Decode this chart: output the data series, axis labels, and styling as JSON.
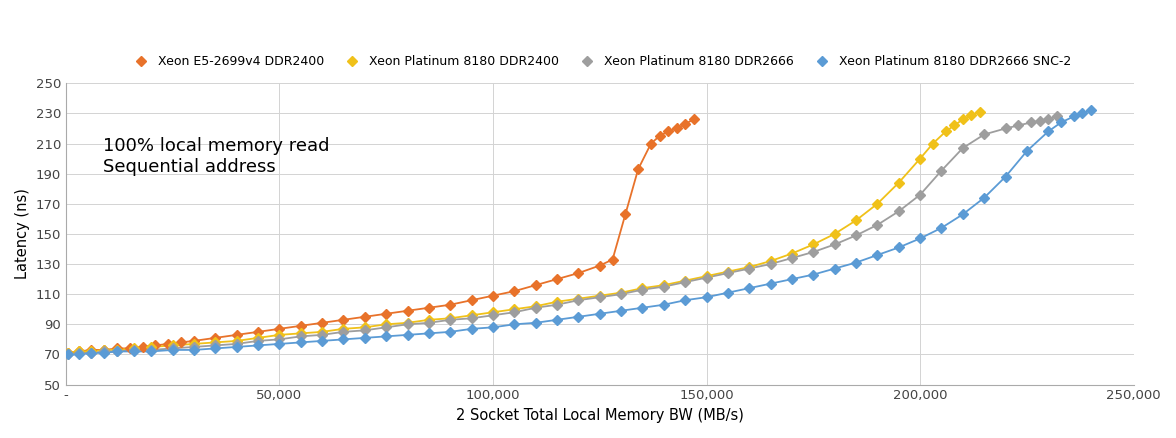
{
  "title": "",
  "xlabel": "2 Socket Total Local Memory BW (MB/s)",
  "ylabel": "Latency (ns)",
  "annotation": "100% local memory read\nSequential address",
  "ylim": [
    50,
    250
  ],
  "xlim": [
    0,
    250000
  ],
  "yticks": [
    50,
    70,
    90,
    110,
    130,
    150,
    170,
    190,
    210,
    230,
    250
  ],
  "xticks": [
    0,
    50000,
    100000,
    150000,
    200000,
    250000
  ],
  "xtick_labels": [
    "-",
    "50,000",
    "100,000",
    "150,000",
    "200,000",
    "250,000"
  ],
  "series": [
    {
      "label": "Xeon E5-2699v4 DDR2400",
      "color": "#E8722A",
      "x": [
        500,
        3000,
        6000,
        9000,
        12000,
        15000,
        18000,
        21000,
        24000,
        27000,
        30000,
        35000,
        40000,
        45000,
        50000,
        55000,
        60000,
        65000,
        70000,
        75000,
        80000,
        85000,
        90000,
        95000,
        100000,
        105000,
        110000,
        115000,
        120000,
        125000,
        128000,
        131000,
        134000,
        137000,
        139000,
        141000,
        143000,
        145000,
        147000
      ],
      "y": [
        71,
        72,
        73,
        73,
        74,
        74,
        75,
        76,
        77,
        78,
        79,
        81,
        83,
        85,
        87,
        89,
        91,
        93,
        95,
        97,
        99,
        101,
        103,
        106,
        109,
        112,
        116,
        120,
        124,
        129,
        133,
        163,
        193,
        210,
        215,
        218,
        220,
        223,
        226
      ]
    },
    {
      "label": "Xeon Platinum 8180 DDR2400",
      "color": "#F0C119",
      "x": [
        500,
        3000,
        6000,
        9000,
        12000,
        16000,
        20000,
        25000,
        30000,
        35000,
        40000,
        45000,
        50000,
        55000,
        60000,
        65000,
        70000,
        75000,
        80000,
        85000,
        90000,
        95000,
        100000,
        105000,
        110000,
        115000,
        120000,
        125000,
        130000,
        135000,
        140000,
        145000,
        150000,
        155000,
        160000,
        165000,
        170000,
        175000,
        180000,
        185000,
        190000,
        195000,
        200000,
        203000,
        206000,
        208000,
        210000,
        212000,
        214000
      ],
      "y": [
        71,
        72,
        72,
        73,
        73,
        74,
        75,
        76,
        77,
        78,
        79,
        81,
        83,
        84,
        85,
        87,
        88,
        90,
        91,
        93,
        94,
        96,
        98,
        100,
        102,
        105,
        107,
        109,
        111,
        114,
        116,
        119,
        122,
        125,
        128,
        132,
        137,
        143,
        150,
        159,
        170,
        184,
        200,
        210,
        218,
        222,
        226,
        229,
        231
      ]
    },
    {
      "label": "Xeon Platinum 8180 DDR2666",
      "color": "#9E9E9E",
      "x": [
        500,
        3000,
        6000,
        9000,
        12000,
        16000,
        20000,
        25000,
        30000,
        35000,
        40000,
        45000,
        50000,
        55000,
        60000,
        65000,
        70000,
        75000,
        80000,
        85000,
        90000,
        95000,
        100000,
        105000,
        110000,
        115000,
        120000,
        125000,
        130000,
        135000,
        140000,
        145000,
        150000,
        155000,
        160000,
        165000,
        170000,
        175000,
        180000,
        185000,
        190000,
        195000,
        200000,
        205000,
        210000,
        215000,
        220000,
        223000,
        226000,
        228000,
        230000,
        232000
      ],
      "y": [
        70,
        71,
        71,
        72,
        72,
        73,
        73,
        74,
        75,
        76,
        77,
        79,
        80,
        82,
        83,
        85,
        86,
        88,
        90,
        91,
        93,
        94,
        96,
        98,
        101,
        103,
        106,
        108,
        110,
        113,
        115,
        118,
        121,
        124,
        127,
        130,
        134,
        138,
        143,
        149,
        156,
        165,
        176,
        192,
        207,
        216,
        220,
        222,
        224,
        225,
        226,
        228
      ]
    },
    {
      "label": "Xeon Platinum 8180 DDR2666 SNC-2",
      "color": "#5B9BD5",
      "x": [
        500,
        3000,
        6000,
        9000,
        12000,
        16000,
        20000,
        25000,
        30000,
        35000,
        40000,
        45000,
        50000,
        55000,
        60000,
        65000,
        70000,
        75000,
        80000,
        85000,
        90000,
        95000,
        100000,
        105000,
        110000,
        115000,
        120000,
        125000,
        130000,
        135000,
        140000,
        145000,
        150000,
        155000,
        160000,
        165000,
        170000,
        175000,
        180000,
        185000,
        190000,
        195000,
        200000,
        205000,
        210000,
        215000,
        220000,
        225000,
        230000,
        233000,
        236000,
        238000,
        240000
      ],
      "y": [
        70,
        70,
        71,
        71,
        72,
        72,
        72,
        73,
        73,
        74,
        75,
        76,
        77,
        78,
        79,
        80,
        81,
        82,
        83,
        84,
        85,
        87,
        88,
        90,
        91,
        93,
        95,
        97,
        99,
        101,
        103,
        106,
        108,
        111,
        114,
        117,
        120,
        123,
        127,
        131,
        136,
        141,
        147,
        154,
        163,
        174,
        188,
        205,
        218,
        224,
        228,
        230,
        232
      ]
    }
  ],
  "background_color": "#FFFFFF",
  "grid_color": "#D3D3D3",
  "legend_fontsize": 9,
  "axis_fontsize": 9.5,
  "annotation_fontsize": 13
}
